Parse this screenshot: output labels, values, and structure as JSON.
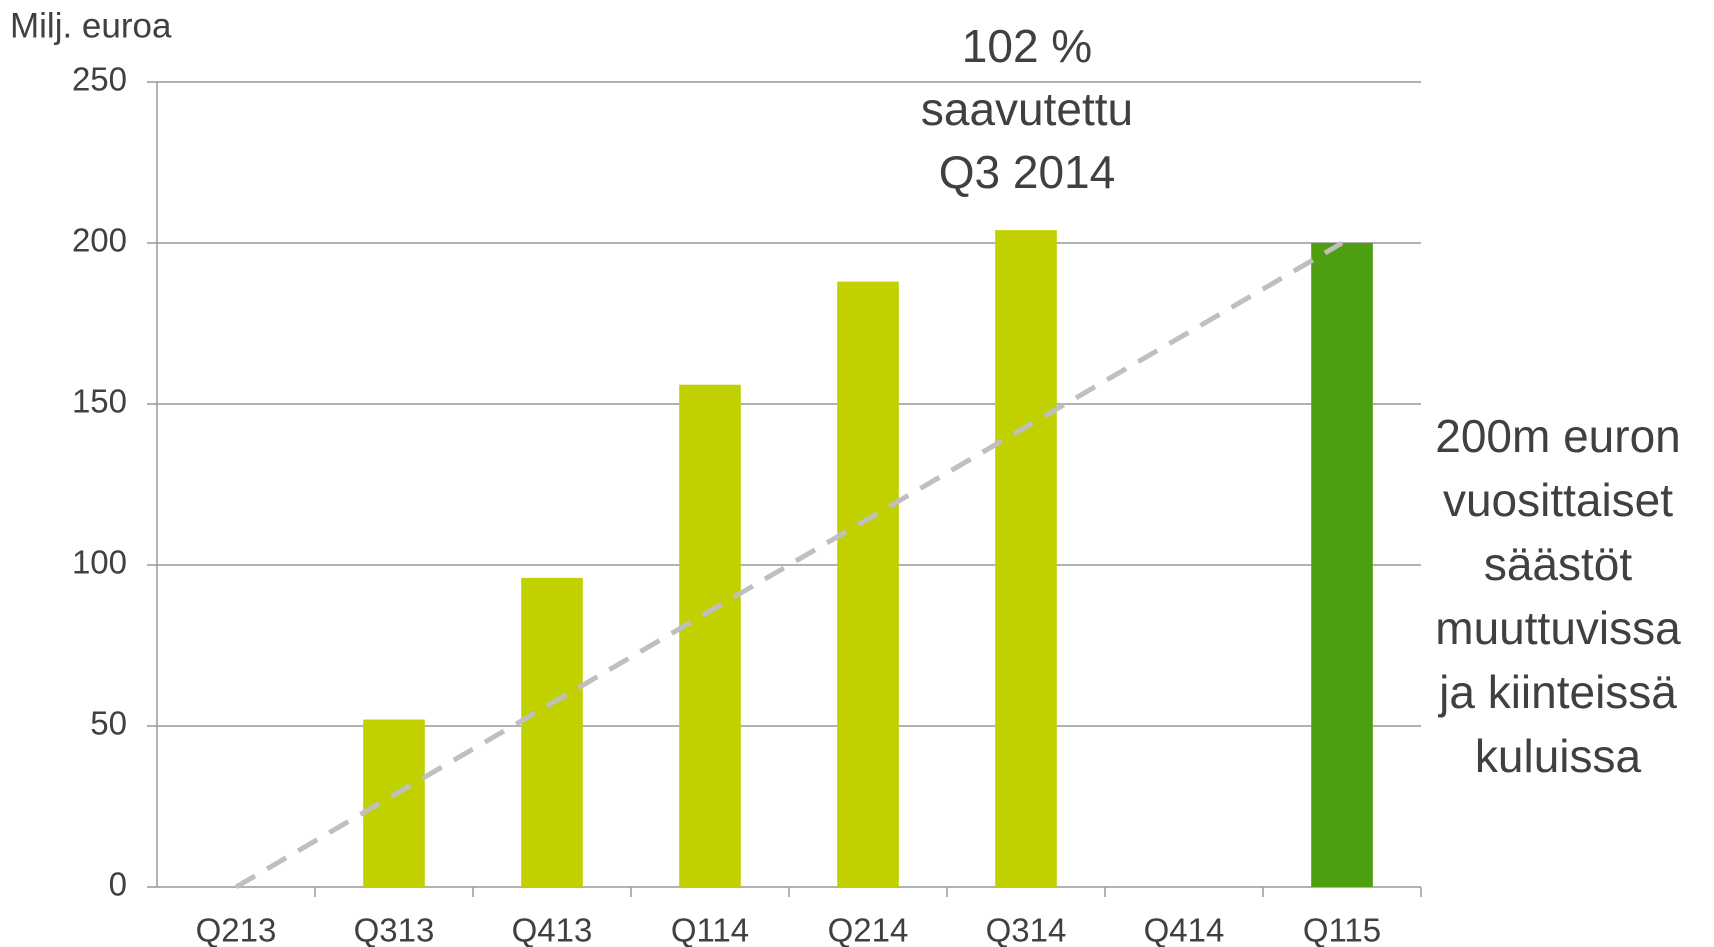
{
  "chart_data": {
    "type": "bar",
    "y_axis_label": "Milj. euroa",
    "categories": [
      "Q213",
      "Q313",
      "Q413",
      "Q114",
      "Q214",
      "Q314",
      "Q414",
      "Q115"
    ],
    "values": [
      null,
      52,
      96,
      156,
      188,
      204,
      null,
      200
    ],
    "colors": [
      "#c0d000",
      "#c0d000",
      "#c0d000",
      "#c0d000",
      "#c0d000",
      "#c0d000",
      "#c0d000",
      "#4e9f0f"
    ],
    "line_values": [
      0,
      28.6,
      57.1,
      85.7,
      114.3,
      142.9,
      171.4,
      200
    ],
    "line_color": "#bfbfbf",
    "line_dashed": true,
    "ylim": [
      0,
      250
    ],
    "yticks": [
      0,
      50,
      100,
      150,
      200,
      250
    ],
    "grid": true,
    "annotations": [
      {
        "lines": [
          "102 %",
          "saavutettu",
          "Q3 2014"
        ]
      },
      {
        "lines": [
          "200m euron",
          "vuosittaiset",
          "säästöt",
          "muuttuvissa",
          "ja kiinteissä",
          "kuluissa"
        ]
      }
    ]
  }
}
